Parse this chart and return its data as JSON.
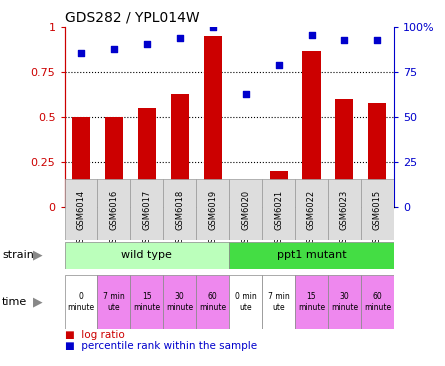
{
  "title": "GDS282 / YPL014W",
  "samples": [
    "GSM6014",
    "GSM6016",
    "GSM6017",
    "GSM6018",
    "GSM6019",
    "GSM6020",
    "GSM6021",
    "GSM6022",
    "GSM6023",
    "GSM6015"
  ],
  "log_ratio": [
    0.5,
    0.5,
    0.55,
    0.63,
    0.95,
    0.02,
    0.2,
    0.87,
    0.6,
    0.58
  ],
  "percentile": [
    0.86,
    0.88,
    0.91,
    0.94,
    1.0,
    0.63,
    0.79,
    0.96,
    0.93,
    0.93
  ],
  "bar_color": "#cc0000",
  "dot_color": "#0000cc",
  "ylim": [
    0,
    1.0
  ],
  "yticks_left": [
    0,
    0.25,
    0.5,
    0.75,
    1.0
  ],
  "ytick_labels_left": [
    "0",
    "0.25",
    "0.5",
    "0.75",
    "1"
  ],
  "yticks_right": [
    0,
    25,
    50,
    75,
    100
  ],
  "ytick_labels_right": [
    "0",
    "25",
    "50",
    "75",
    "100%"
  ],
  "strain_wild": "wild type",
  "strain_mutant": "ppt1 mutant",
  "time_labels": [
    "0\nminute",
    "7 min\nute",
    "15\nminute",
    "30\nminute",
    "60\nminute",
    "0 min\nute",
    "7 min\nute",
    "15\nminute",
    "30\nminute",
    "60\nminute"
  ],
  "time_colors": [
    "#ffffff",
    "#ee88ee",
    "#ee88ee",
    "#ee88ee",
    "#ee88ee",
    "#ffffff",
    "#ffffff",
    "#ee88ee",
    "#ee88ee",
    "#ee88ee"
  ],
  "strain_wild_color": "#bbffbb",
  "strain_mutant_color": "#44dd44",
  "xticklabel_bg": "#dddddd",
  "tick_label_color_left": "#cc0000",
  "tick_label_color_right": "#0000cc",
  "legend_bar_color": "#cc0000",
  "legend_dot_color": "#0000cc"
}
